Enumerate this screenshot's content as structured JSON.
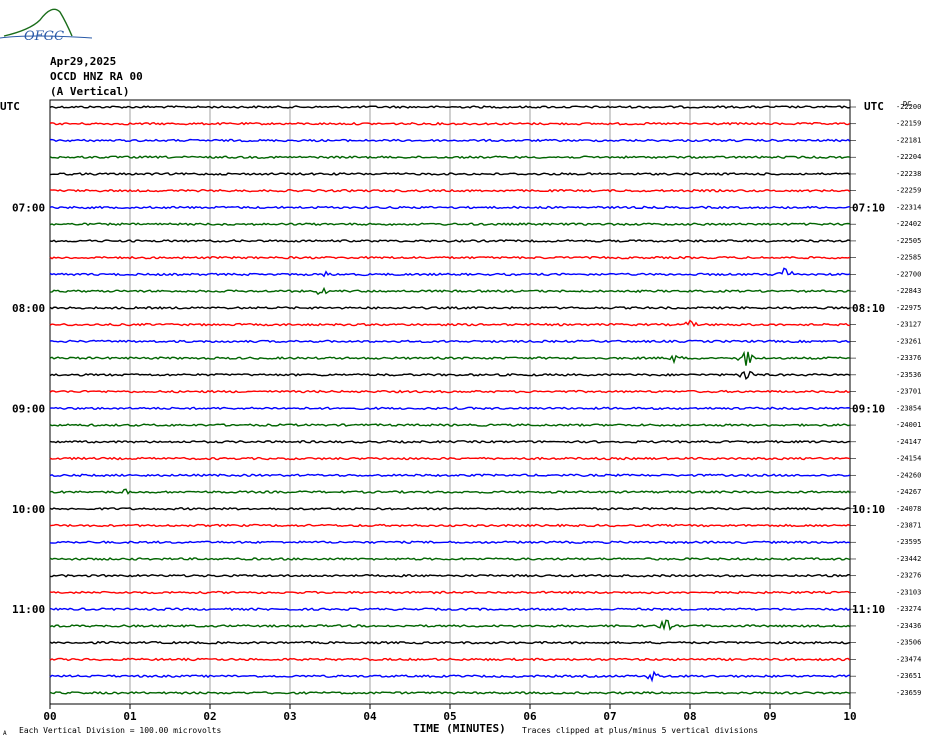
{
  "header": {
    "date": "Apr29,2025",
    "station": "OCCD HNZ RA 00",
    "component": "(A Vertical)",
    "logo_text": "OFGC"
  },
  "labels": {
    "left_tz": "UTC",
    "right_tz": "UTC",
    "right_top": "DC",
    "xlabel": "TIME (MINUTES)",
    "footer_left": "Each Vertical Division =  100.00 microvolts",
    "footer_right": "Traces clipped at plus/minus 5 vertical divisions",
    "footer_mark": "A"
  },
  "chart_data": {
    "type": "line",
    "title": "OCCD HNZ RA 00 (A Vertical) Apr29,2025",
    "xlabel": "TIME (MINUTES)",
    "xlim": [
      0,
      10
    ],
    "x_ticks": [
      "00",
      "01",
      "02",
      "03",
      "04",
      "05",
      "06",
      "07",
      "08",
      "09",
      "10"
    ],
    "left_time_labels": [
      {
        "row": 6,
        "text": "07:00"
      },
      {
        "row": 12,
        "text": "08:00"
      },
      {
        "row": 18,
        "text": "09:00"
      },
      {
        "row": 24,
        "text": "10:00"
      },
      {
        "row": 30,
        "text": "11:00"
      }
    ],
    "right_time_labels": [
      {
        "row": 6,
        "text": "07:10"
      },
      {
        "row": 12,
        "text": "08:10"
      },
      {
        "row": 18,
        "text": "09:10"
      },
      {
        "row": 24,
        "text": "10:10"
      },
      {
        "row": 30,
        "text": "11:10"
      }
    ],
    "trace_colors": [
      "#000000",
      "#ff0000",
      "#0000ff",
      "#006400"
    ],
    "dc_offsets": [
      -22200,
      -22159,
      -22181,
      -22204,
      -22238,
      -22259,
      -22314,
      -22402,
      -22505,
      -22585,
      -22700,
      -22843,
      -22975,
      -23127,
      -23261,
      -23376,
      -23536,
      -23701,
      -23854,
      -24001,
      -24147,
      -24154,
      -24260,
      -24267,
      -24078,
      -23871,
      -23595,
      -23442,
      -23276,
      -23103,
      -23274,
      -23436,
      -23506,
      -23474,
      -23651,
      -23659
    ],
    "events": [
      {
        "row": 10,
        "minute": 9.2,
        "amp": 9
      },
      {
        "row": 10,
        "minute": 3.45,
        "amp": 3
      },
      {
        "row": 11,
        "minute": 3.4,
        "amp": 4
      },
      {
        "row": 13,
        "minute": 8.0,
        "amp": 4
      },
      {
        "row": 15,
        "minute": 8.7,
        "amp": 10
      },
      {
        "row": 15,
        "minute": 7.8,
        "amp": 4
      },
      {
        "row": 16,
        "minute": 8.7,
        "amp": 6
      },
      {
        "row": 23,
        "minute": 0.95,
        "amp": 4
      },
      {
        "row": 31,
        "minute": 7.7,
        "amp": 7
      },
      {
        "row": 34,
        "minute": 7.55,
        "amp": 6
      }
    ],
    "grid": true
  }
}
